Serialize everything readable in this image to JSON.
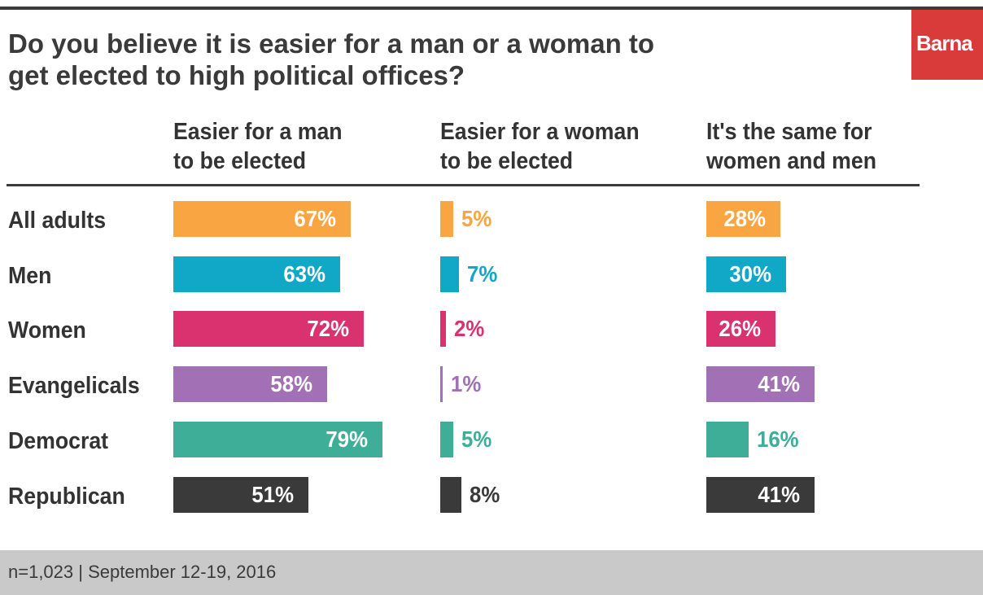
{
  "title": "Do you believe it is easier for a man or a woman to\nget elected to high political offices?",
  "brand": "Barna",
  "footer": "n=1,023 | September 12-19, 2016",
  "colors": {
    "orange": "#f9a541",
    "teal": "#11a8c7",
    "pink": "#d9326f",
    "purple": "#a271b5",
    "green": "#3eae98",
    "dark": "#3a3a3a",
    "brand_red": "#d93a3a"
  },
  "chart_data": {
    "type": "bar",
    "columns": [
      "Easier for a man\nto be elected",
      "Easier for a woman\nto be elected",
      "It's the same for\nwomen and men"
    ],
    "categories": [
      "All adults",
      "Men",
      "Women",
      "Evangelicals",
      "Democrat",
      "Republican"
    ],
    "category_colors": [
      "#f9a541",
      "#11a8c7",
      "#d9326f",
      "#a271b5",
      "#3eae98",
      "#3a3a3a"
    ],
    "series": [
      {
        "name": "Easier for a man to be elected",
        "values": [
          67,
          63,
          72,
          58,
          79,
          51
        ]
      },
      {
        "name": "Easier for a woman to be elected",
        "values": [
          5,
          7,
          2,
          1,
          5,
          8
        ]
      },
      {
        "name": "It's the same for women and men",
        "values": [
          28,
          30,
          26,
          41,
          16,
          41
        ]
      }
    ],
    "value_suffix": "%",
    "ylim": [
      0,
      100
    ]
  }
}
